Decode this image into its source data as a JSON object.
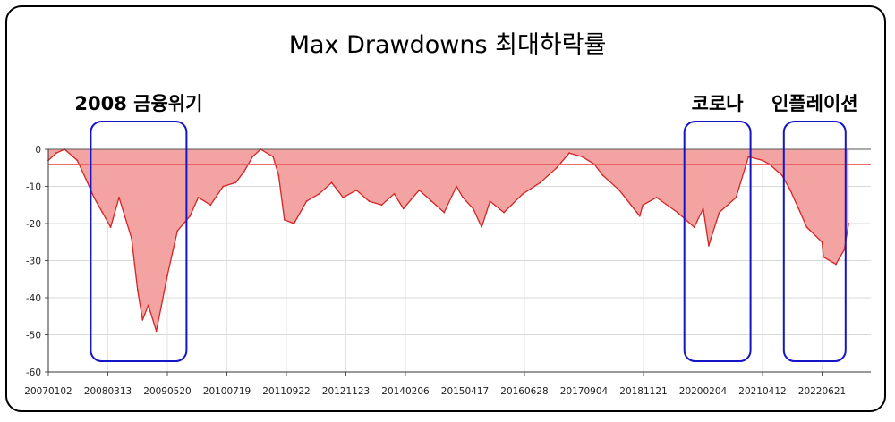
{
  "title": "Max Drawdowns 최대하락률",
  "annotations": [
    {
      "label": "2008 금융위기",
      "start": "20071108",
      "end": "20091007"
    },
    {
      "label": "코로나",
      "start": "20190920",
      "end": "20210115"
    },
    {
      "label": "인플레이션",
      "start": "20210915",
      "end": "20221210"
    }
  ],
  "chart_data": {
    "type": "area",
    "title": "Max Drawdowns 최대하락률",
    "xlabel": "",
    "ylabel": "",
    "ylim": [
      -60,
      0
    ],
    "y_ticks": [
      0,
      -10,
      -20,
      -30,
      -40,
      -50,
      -60
    ],
    "x_tick_labels": [
      "20070102",
      "20080313",
      "20090520",
      "20100719",
      "20110922",
      "20121123",
      "20140206",
      "20150417",
      "20160628",
      "20170904",
      "20181121",
      "20200204",
      "20210412",
      "20220621"
    ],
    "grid": true,
    "reference_line": -4,
    "colors": {
      "fill": "#f4a3a3",
      "line": "#d42424",
      "reference": "#e85a5a",
      "annotation_box": "#1515c8"
    },
    "series": [
      {
        "x": [
          "20070102",
          "20070301",
          "20070501",
          "20070801",
          "20071015",
          "20071201",
          "20080201",
          "20080401",
          "20080601",
          "20080901",
          "20081015",
          "20081120",
          "20090101",
          "20090301",
          "20090520",
          "20090801",
          "20091101",
          "20100101",
          "20100401",
          "20100701",
          "20101001",
          "20101201",
          "20110201",
          "20110401",
          "20110701",
          "20110810",
          "20110922",
          "20111201",
          "20120301",
          "20120601",
          "20120901",
          "20121123",
          "20130301",
          "20130601",
          "20130901",
          "20131201",
          "20140206",
          "20140601",
          "20140901",
          "20141201",
          "20150301",
          "20150417",
          "20150701",
          "20150901",
          "20151101",
          "20160210",
          "20160628",
          "20161101",
          "20170301",
          "20170601",
          "20170904",
          "20171201",
          "20180201",
          "20180601",
          "20181029",
          "20181121",
          "20190301",
          "20190801",
          "20191201",
          "20200204",
          "20200316",
          "20200401",
          "20200601",
          "20201001",
          "20201231",
          "20210412",
          "20210601",
          "20210901",
          "20211101",
          "20220101",
          "20220301",
          "20220621",
          "20220701",
          "20220930",
          "20221201",
          "20230101"
        ],
        "y": [
          -3,
          -1,
          0,
          -3,
          -9,
          -13,
          -17,
          -21,
          -13,
          -24,
          -38,
          -46,
          -42,
          -49,
          -34,
          -22,
          -18,
          -13,
          -15,
          -10,
          -9,
          -6,
          -2,
          0,
          -2,
          -7,
          -19,
          -20,
          -14,
          -12,
          -9,
          -13,
          -11,
          -14,
          -15,
          -12,
          -16,
          -11,
          -14,
          -17,
          -10,
          -13,
          -16,
          -21,
          -14,
          -17,
          -12,
          -9,
          -5,
          -1,
          -2,
          -4,
          -7,
          -11,
          -18,
          -15,
          -13,
          -17,
          -21,
          -16,
          -26,
          -24,
          -17,
          -13,
          -2,
          -3,
          -4,
          -7,
          -11,
          -16,
          -21,
          -25,
          -29,
          -31,
          -27,
          -20
        ]
      }
    ]
  }
}
